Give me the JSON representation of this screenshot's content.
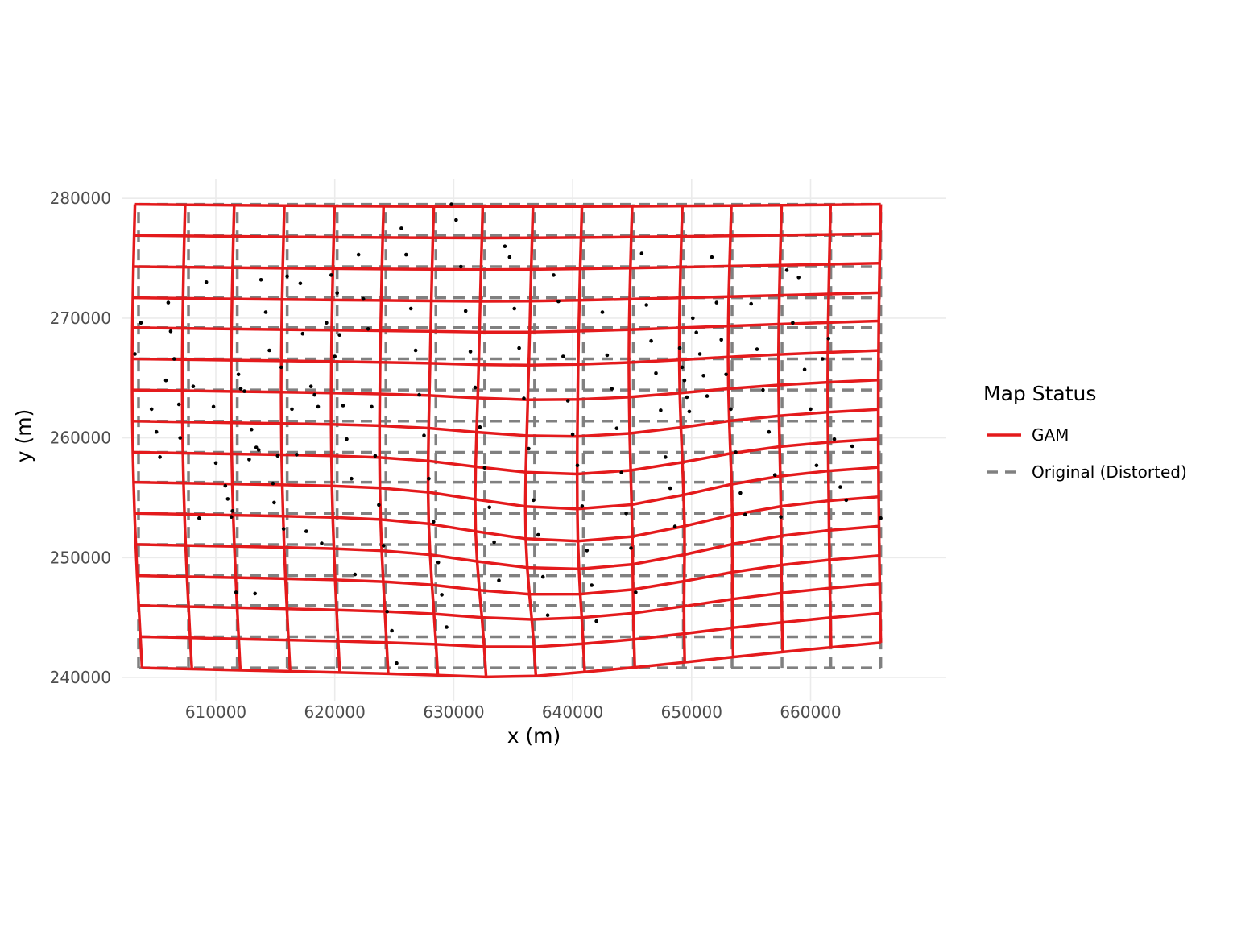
{
  "chart_data": {
    "type": "scatter",
    "title": "",
    "xlabel": "x (m)",
    "ylabel": "y (m)",
    "xlim": [
      600000,
      668000
    ],
    "ylim": [
      239000,
      281500
    ],
    "x_ticks": [
      610000,
      620000,
      630000,
      640000,
      650000,
      660000
    ],
    "y_ticks": [
      240000,
      250000,
      260000,
      270000,
      280000
    ],
    "x_tick_labels": [
      "610000",
      "620000",
      "630000",
      "640000",
      "650000",
      "660000"
    ],
    "y_tick_labels": [
      "240000",
      "250000",
      "260000",
      "270000",
      "280000"
    ],
    "grid": true,
    "legend": {
      "title": "Map Status",
      "position": "right",
      "entries": [
        {
          "label": "GAM",
          "color": "#e41a1c",
          "linetype": "solid"
        },
        {
          "label": "Original (Distorted)",
          "color": "#808080",
          "linetype": "dashed"
        }
      ]
    },
    "series": [
      {
        "name": "Original (Distorted)",
        "kind": "grid",
        "x_lines": [
          603500,
          607700,
          611800,
          616000,
          620200,
          624300,
          628500,
          632600,
          636800,
          640900,
          645100,
          649300,
          653400,
          657600,
          661700,
          665900
        ],
        "y_lines": [
          240800,
          243400,
          246000,
          248500,
          251100,
          253700,
          256300,
          258800,
          261400,
          264000,
          266600,
          269200,
          271700,
          274300,
          276900,
          279500
        ]
      },
      {
        "name": "GAM",
        "kind": "warped-grid",
        "base_x": [
          603500,
          607700,
          611800,
          616000,
          620200,
          624300,
          628500,
          632600,
          636800,
          640900,
          645100,
          649300,
          653400,
          657600,
          661700,
          665900
        ],
        "base_y": [
          240800,
          243400,
          246000,
          248500,
          251100,
          253700,
          256300,
          258800,
          261400,
          264000,
          266600,
          269200,
          271700,
          274300,
          276900,
          279500
        ]
      },
      {
        "name": "points",
        "color": "#000000",
        "points": [
          [
            603200,
            267000
          ],
          [
            603700,
            269600
          ],
          [
            604600,
            262400
          ],
          [
            605000,
            260500
          ],
          [
            605300,
            258400
          ],
          [
            605800,
            264800
          ],
          [
            606000,
            271300
          ],
          [
            606200,
            268900
          ],
          [
            606500,
            266600
          ],
          [
            606900,
            262800
          ],
          [
            607000,
            260000
          ],
          [
            608100,
            264300
          ],
          [
            608600,
            253300
          ],
          [
            609200,
            273000
          ],
          [
            609800,
            262600
          ],
          [
            610000,
            257900
          ],
          [
            610800,
            256000
          ],
          [
            611000,
            254900
          ],
          [
            611300,
            253400
          ],
          [
            611400,
            253900
          ],
          [
            611700,
            247100
          ],
          [
            611900,
            265300
          ],
          [
            612100,
            264100
          ],
          [
            612400,
            263900
          ],
          [
            612800,
            258200
          ],
          [
            613000,
            260700
          ],
          [
            613300,
            247000
          ],
          [
            613400,
            259200
          ],
          [
            613600,
            259000
          ],
          [
            613800,
            273200
          ],
          [
            614200,
            270500
          ],
          [
            614500,
            267300
          ],
          [
            614800,
            256200
          ],
          [
            614900,
            254600
          ],
          [
            615200,
            258500
          ],
          [
            615500,
            265900
          ],
          [
            615700,
            252400
          ],
          [
            616000,
            273500
          ],
          [
            616400,
            262400
          ],
          [
            616800,
            258600
          ],
          [
            617100,
            272900
          ],
          [
            617300,
            268700
          ],
          [
            617600,
            252200
          ],
          [
            618000,
            264300
          ],
          [
            618300,
            263600
          ],
          [
            618600,
            262600
          ],
          [
            618900,
            251200
          ],
          [
            619300,
            269600
          ],
          [
            619700,
            273600
          ],
          [
            620000,
            266800
          ],
          [
            620200,
            272100
          ],
          [
            620400,
            268600
          ],
          [
            620700,
            262700
          ],
          [
            621000,
            259900
          ],
          [
            621400,
            256600
          ],
          [
            621700,
            248600
          ],
          [
            622000,
            275300
          ],
          [
            622400,
            271600
          ],
          [
            622800,
            269100
          ],
          [
            623100,
            262600
          ],
          [
            623400,
            258500
          ],
          [
            623700,
            254400
          ],
          [
            624100,
            251000
          ],
          [
            624400,
            245500
          ],
          [
            624800,
            243900
          ],
          [
            625200,
            241200
          ],
          [
            625600,
            277500
          ],
          [
            626000,
            275300
          ],
          [
            626400,
            270800
          ],
          [
            626800,
            267300
          ],
          [
            627100,
            263600
          ],
          [
            627500,
            260200
          ],
          [
            627900,
            256600
          ],
          [
            628300,
            253000
          ],
          [
            628700,
            249600
          ],
          [
            629000,
            246900
          ],
          [
            629400,
            244200
          ],
          [
            629800,
            279500
          ],
          [
            630200,
            278200
          ],
          [
            630600,
            274300
          ],
          [
            631000,
            270600
          ],
          [
            631400,
            267200
          ],
          [
            631800,
            264200
          ],
          [
            632200,
            260900
          ],
          [
            632600,
            257500
          ],
          [
            633000,
            254200
          ],
          [
            633400,
            251300
          ],
          [
            633800,
            248100
          ],
          [
            634300,
            276000
          ],
          [
            634700,
            275100
          ],
          [
            635100,
            270800
          ],
          [
            635500,
            267500
          ],
          [
            635900,
            263300
          ],
          [
            636300,
            259100
          ],
          [
            636700,
            254800
          ],
          [
            637100,
            251900
          ],
          [
            637500,
            248400
          ],
          [
            637900,
            245200
          ],
          [
            638400,
            273600
          ],
          [
            638800,
            271400
          ],
          [
            639200,
            266800
          ],
          [
            639600,
            263100
          ],
          [
            640000,
            260300
          ],
          [
            640400,
            257700
          ],
          [
            640800,
            254300
          ],
          [
            641200,
            250600
          ],
          [
            641600,
            247700
          ],
          [
            642000,
            244700
          ],
          [
            642500,
            270500
          ],
          [
            642900,
            266900
          ],
          [
            643300,
            264100
          ],
          [
            643700,
            260800
          ],
          [
            644100,
            257100
          ],
          [
            644500,
            253700
          ],
          [
            644900,
            250800
          ],
          [
            645300,
            247100
          ],
          [
            645800,
            275400
          ],
          [
            646200,
            271100
          ],
          [
            646600,
            268100
          ],
          [
            647000,
            265400
          ],
          [
            647400,
            262300
          ],
          [
            647800,
            258400
          ],
          [
            648200,
            255800
          ],
          [
            648600,
            252600
          ],
          [
            649000,
            267500
          ],
          [
            649200,
            265900
          ],
          [
            649400,
            264800
          ],
          [
            649600,
            263400
          ],
          [
            649800,
            262200
          ],
          [
            650100,
            270000
          ],
          [
            650400,
            268800
          ],
          [
            650700,
            267000
          ],
          [
            651000,
            265200
          ],
          [
            651300,
            263500
          ],
          [
            651700,
            275100
          ],
          [
            652100,
            271300
          ],
          [
            652500,
            268200
          ],
          [
            652900,
            265300
          ],
          [
            653300,
            262400
          ],
          [
            653700,
            258800
          ],
          [
            654100,
            255400
          ],
          [
            654500,
            253600
          ],
          [
            655000,
            271200
          ],
          [
            655500,
            267400
          ],
          [
            656000,
            264000
          ],
          [
            656500,
            260500
          ],
          [
            657000,
            256900
          ],
          [
            657500,
            253400
          ],
          [
            658000,
            274000
          ],
          [
            658500,
            269600
          ],
          [
            659000,
            273400
          ],
          [
            659500,
            265700
          ],
          [
            660000,
            262400
          ],
          [
            660500,
            257700
          ],
          [
            661000,
            266600
          ],
          [
            661500,
            268300
          ],
          [
            662000,
            259900
          ],
          [
            662500,
            255900
          ],
          [
            663000,
            254800
          ],
          [
            663500,
            259300
          ],
          [
            665900,
            253300
          ]
        ]
      }
    ]
  }
}
